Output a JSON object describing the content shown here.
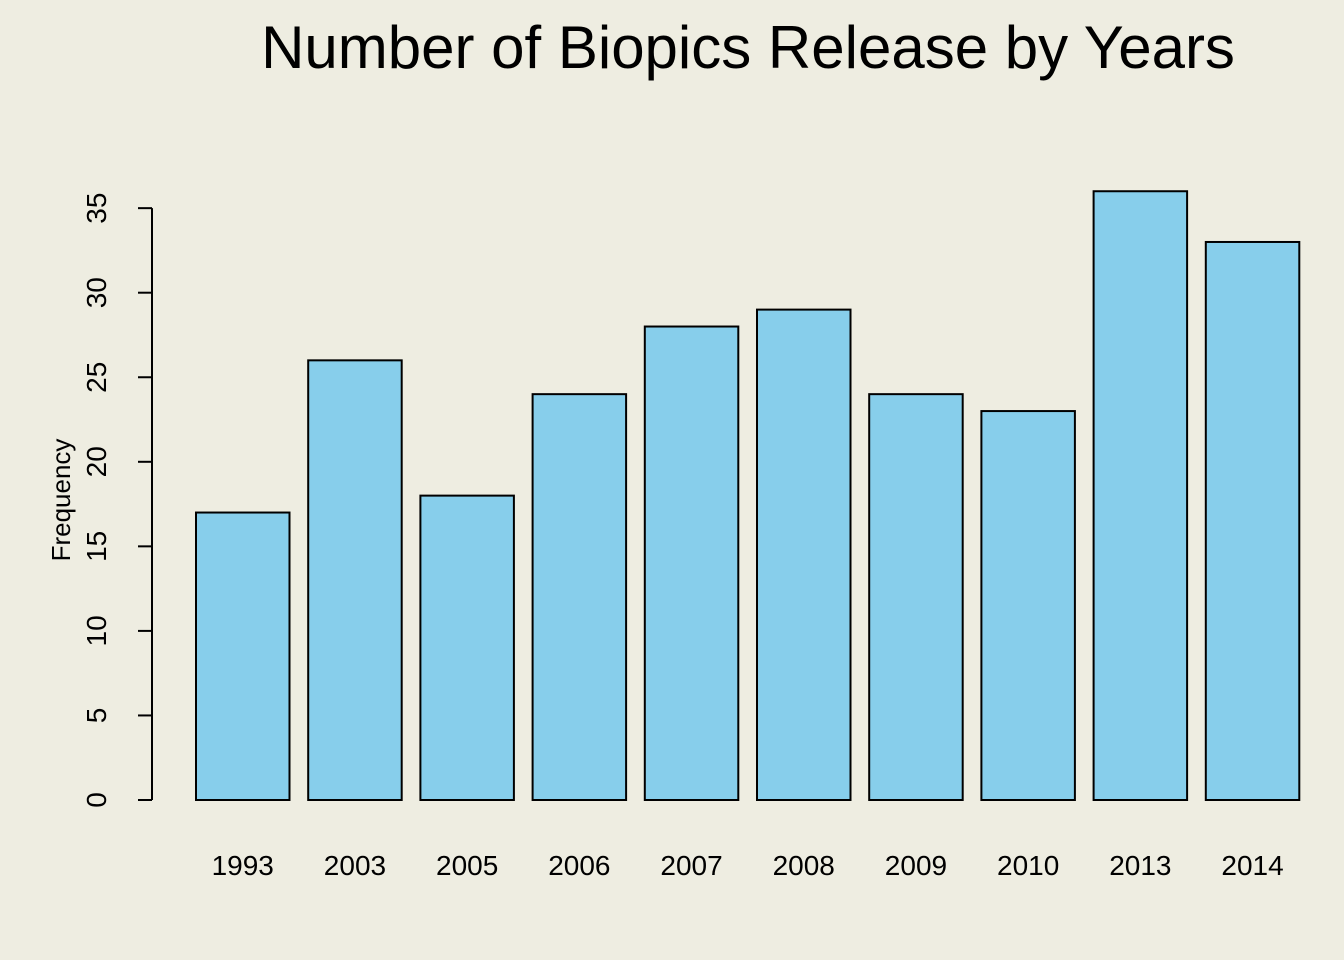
{
  "chart_data": {
    "type": "bar",
    "title": "Number of Biopics Release by Years",
    "xlabel": "",
    "ylabel": "Frequency",
    "categories": [
      "1993",
      "2003",
      "2005",
      "2006",
      "2007",
      "2008",
      "2009",
      "2010",
      "2013",
      "2014"
    ],
    "values": [
      17,
      26,
      18,
      24,
      28,
      29,
      24,
      23,
      36,
      33
    ],
    "ylim": [
      0,
      35
    ],
    "yticks": [
      0,
      5,
      10,
      15,
      20,
      25,
      30,
      35
    ],
    "ytick_labels": [
      "0",
      "5",
      "10",
      "15",
      "20",
      "25",
      "30",
      "35"
    ],
    "grid": false,
    "legend": "none",
    "colors": {
      "background": "#EEEDE1",
      "bar_fill": "#87CEEB",
      "bar_stroke": "#000000",
      "axis": "#000000",
      "text": "#000000"
    }
  }
}
